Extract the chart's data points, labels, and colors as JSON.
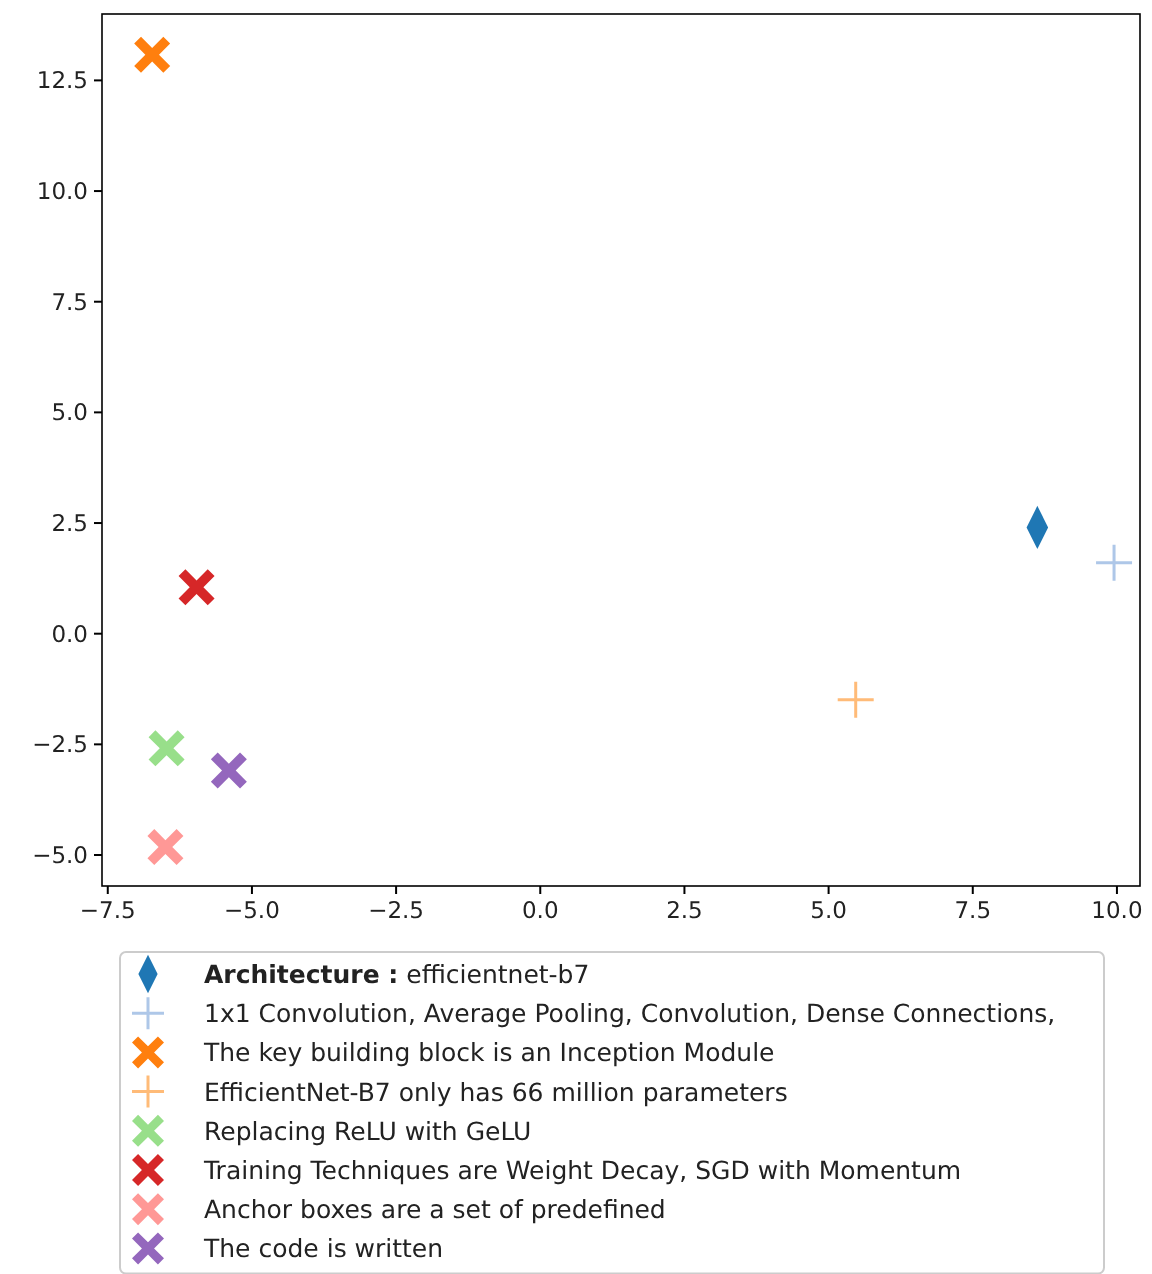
{
  "chart_data": {
    "type": "scatter",
    "xlim": [
      -7.6,
      10.4
    ],
    "ylim": [
      -5.7,
      14.0
    ],
    "xticks": [
      {
        "value": -7.5,
        "label": "−7.5"
      },
      {
        "value": -5,
        "label": "−5.0"
      },
      {
        "value": -2.5,
        "label": "−2.5"
      },
      {
        "value": 0,
        "label": "0.0"
      },
      {
        "value": 2.5,
        "label": "2.5"
      },
      {
        "value": 5,
        "label": "5.0"
      },
      {
        "value": 7.5,
        "label": "7.5"
      },
      {
        "value": 10,
        "label": "10.0"
      }
    ],
    "yticks": [
      {
        "value": -5,
        "label": "−5.0"
      },
      {
        "value": -2.5,
        "label": "−2.5"
      },
      {
        "value": 0,
        "label": "0.0"
      },
      {
        "value": 2.5,
        "label": "2.5"
      },
      {
        "value": 5,
        "label": "5.0"
      },
      {
        "value": 7.5,
        "label": "7.5"
      },
      {
        "value": 10,
        "label": "10.0"
      },
      {
        "value": 12.5,
        "label": "12.5"
      }
    ],
    "grid": false,
    "legend": "bottom",
    "series": [
      {
        "name": "Architecture : efficientnet-b7",
        "color": "#1f77b4",
        "marker": "diamond",
        "x": [
          8.62
        ],
        "values": [
          2.4
        ]
      },
      {
        "name": "1x1 Convolution, Average Pooling, Convolution, Dense Connections,",
        "color": "#aec7e8",
        "marker": "plus",
        "x": [
          9.95
        ],
        "values": [
          1.6
        ]
      },
      {
        "name": "The key building block is an Inception Module",
        "color": "#ff7f0e",
        "marker": "cross",
        "x": [
          -6.73
        ],
        "values": [
          13.08
        ]
      },
      {
        "name": "EfficientNet-B7 only has 66 million parameters",
        "color": "#ffbb78",
        "marker": "plus",
        "x": [
          5.47
        ],
        "values": [
          -1.49
        ]
      },
      {
        "name": "Replacing ReLU with GeLU",
        "color": "#98df8a",
        "marker": "cross",
        "x": [
          -6.48
        ],
        "values": [
          -2.59
        ]
      },
      {
        "name": "Training Techniques are Weight Decay, SGD with Momentum",
        "color": "#d62728",
        "marker": "cross",
        "x": [
          -5.96
        ],
        "values": [
          1.05
        ]
      },
      {
        "name": "Anchor boxes are a set of predefined",
        "color": "#ff9896",
        "marker": "cross",
        "x": [
          -6.5
        ],
        "values": [
          -4.82
        ]
      },
      {
        "name": "The code is written",
        "color": "#9467bd",
        "marker": "cross",
        "x": [
          -5.4
        ],
        "values": [
          -3.09
        ]
      }
    ]
  }
}
